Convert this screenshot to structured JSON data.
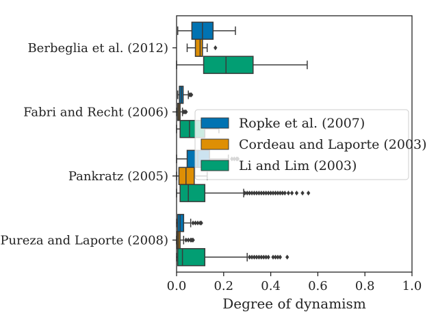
{
  "chart_data": {
    "type": "boxplot",
    "orientation": "horizontal",
    "xlabel": "Degree of dynamism",
    "xlim": [
      0,
      1
    ],
    "xticks": [
      "0.0",
      "0.2",
      "0.4",
      "0.6",
      "0.8",
      "1.0"
    ],
    "grid": false,
    "legend": {
      "placement": "center-right"
    },
    "categories": [
      "Berbeglia et al. (2012)",
      "Fabri and Recht (2006)",
      "Pankratz (2005)",
      "Pureza and Laporte (2008)"
    ],
    "series": [
      {
        "name": "Ropke et al. (2007)",
        "color": "#0173b2",
        "boxes": [
          {
            "whisker_low": 0.005,
            "q1": 0.065,
            "median": 0.11,
            "q3": 0.155,
            "whisker_high": 0.25,
            "outliers": []
          },
          {
            "whisker_low": 0.005,
            "q1": 0.012,
            "median": 0.02,
            "q3": 0.028,
            "whisker_high": 0.05,
            "outliers": [
              0.055,
              0.06,
              0.063
            ]
          },
          {
            "whisker_low": 0.0,
            "q1": 0.045,
            "median": 0.09,
            "q3": 0.14,
            "whisker_high": 0.22,
            "outliers": [
              0.235,
              0.245,
              0.255,
              0.26
            ]
          },
          {
            "whisker_low": 0.0,
            "q1": 0.005,
            "median": 0.015,
            "q3": 0.03,
            "whisker_high": 0.06,
            "outliers": [
              0.07,
              0.08,
              0.09,
              0.1,
              0.105
            ]
          }
        ]
      },
      {
        "name": "Cordeau and Laporte (2003)",
        "color": "#de8f05",
        "boxes": [
          {
            "whisker_low": 0.045,
            "q1": 0.08,
            "median": 0.1,
            "q3": 0.11,
            "whisker_high": 0.13,
            "outliers": [
              0.165
            ]
          },
          {
            "whisker_low": 0.0,
            "q1": 0.005,
            "median": 0.01,
            "q3": 0.015,
            "whisker_high": 0.025,
            "outliers": [
              0.03,
              0.035,
              0.04
            ]
          },
          {
            "whisker_low": 0.0,
            "q1": 0.01,
            "median": 0.04,
            "q3": 0.075,
            "whisker_high": 0.13,
            "outliers": []
          },
          {
            "whisker_low": 0.0,
            "q1": 0.003,
            "median": 0.008,
            "q3": 0.015,
            "whisker_high": 0.03,
            "outliers": [
              0.04,
              0.05,
              0.06,
              0.065,
              0.07
            ]
          }
        ]
      },
      {
        "name": "Li and Lim (2003)",
        "color": "#029e73",
        "boxes": [
          {
            "whisker_low": 0.0,
            "q1": 0.115,
            "median": 0.21,
            "q3": 0.325,
            "whisker_high": 0.555,
            "outliers": []
          },
          {
            "whisker_low": 0.0,
            "q1": 0.015,
            "median": 0.055,
            "q3": 0.12,
            "whisker_high": 0.18,
            "outliers": []
          },
          {
            "whisker_low": 0.0,
            "q1": 0.015,
            "median": 0.05,
            "q3": 0.12,
            "whisker_high": 0.285,
            "outliers": [
              0.29,
              0.3,
              0.31,
              0.32,
              0.33,
              0.34,
              0.35,
              0.36,
              0.37,
              0.38,
              0.39,
              0.4,
              0.41,
              0.42,
              0.43,
              0.44,
              0.45,
              0.46,
              0.475,
              0.49,
              0.51,
              0.535,
              0.56
            ]
          },
          {
            "whisker_low": 0.0,
            "q1": 0.005,
            "median": 0.025,
            "q3": 0.12,
            "whisker_high": 0.3,
            "outliers": [
              0.31,
              0.32,
              0.33,
              0.34,
              0.35,
              0.36,
              0.37,
              0.38,
              0.39,
              0.41,
              0.42,
              0.43,
              0.44,
              0.47
            ]
          }
        ]
      }
    ]
  }
}
